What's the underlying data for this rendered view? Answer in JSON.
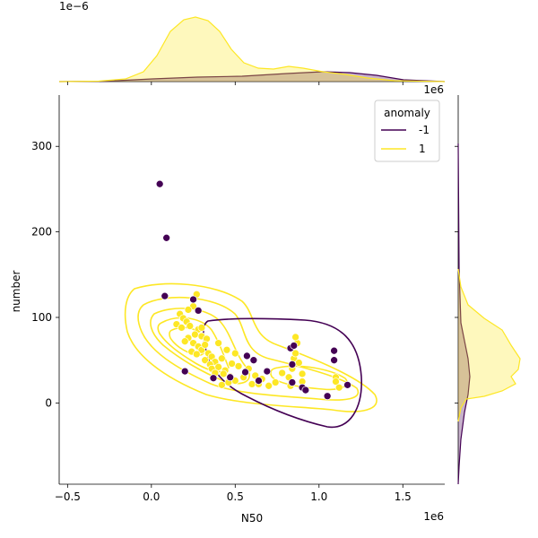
{
  "chart_data": {
    "type": "scatter",
    "title": "",
    "xlabel": "N50",
    "ylabel": "number",
    "x_offset_label": "1e6",
    "y_offset_label_top_margin": "1e−6",
    "x_offset_label_right_margin": "1e6",
    "xlim": [
      -0.55,
      1.75
    ],
    "ylim": [
      -95,
      360
    ],
    "x_ticks": [
      -0.5,
      0.0,
      0.5,
      1.0,
      1.5
    ],
    "x_tick_labels": [
      "−0.5",
      "0.0",
      "0.5",
      "1.0",
      "1.5"
    ],
    "y_ticks": [
      0,
      100,
      200,
      300
    ],
    "y_tick_labels": [
      "0",
      "100",
      "200",
      "300"
    ],
    "legend": {
      "title": "anomaly",
      "position": "top-right",
      "entries": [
        {
          "label": "-1",
          "color": "#440154"
        },
        {
          "label": "1",
          "color": "#fde725"
        }
      ]
    },
    "colors": {
      "anomaly_neg": "#440154",
      "anomaly_pos": "#fde725"
    },
    "series": [
      {
        "name": "-1",
        "points": [
          [
            0.05,
            256
          ],
          [
            0.09,
            193
          ],
          [
            0.08,
            125
          ],
          [
            0.25,
            121
          ],
          [
            0.28,
            108
          ],
          [
            0.2,
            37
          ],
          [
            0.37,
            29
          ],
          [
            0.47,
            30
          ],
          [
            0.56,
            36
          ],
          [
            0.57,
            55
          ],
          [
            0.61,
            50
          ],
          [
            0.64,
            26
          ],
          [
            0.69,
            37
          ],
          [
            0.83,
            64
          ],
          [
            0.85,
            67
          ],
          [
            0.84,
            45
          ],
          [
            0.84,
            24
          ],
          [
            0.9,
            18
          ],
          [
            0.92,
            15
          ],
          [
            1.05,
            8
          ],
          [
            1.09,
            61
          ],
          [
            1.09,
            50
          ],
          [
            1.17,
            21
          ]
        ]
      },
      {
        "name": "1",
        "points": [
          [
            0.27,
            127
          ],
          [
            0.25,
            113
          ],
          [
            0.22,
            109
          ],
          [
            0.17,
            104
          ],
          [
            0.19,
            99
          ],
          [
            0.21,
            95
          ],
          [
            0.23,
            90
          ],
          [
            0.15,
            92
          ],
          [
            0.18,
            88
          ],
          [
            0.28,
            86
          ],
          [
            0.26,
            80
          ],
          [
            0.22,
            76
          ],
          [
            0.3,
            78
          ],
          [
            0.33,
            75
          ],
          [
            0.2,
            72
          ],
          [
            0.25,
            70
          ],
          [
            0.28,
            66
          ],
          [
            0.3,
            62
          ],
          [
            0.24,
            60
          ],
          [
            0.34,
            58
          ],
          [
            0.36,
            54
          ],
          [
            0.27,
            57
          ],
          [
            0.32,
            50
          ],
          [
            0.38,
            48
          ],
          [
            0.42,
            52
          ],
          [
            0.35,
            45
          ],
          [
            0.4,
            42
          ],
          [
            0.44,
            38
          ],
          [
            0.48,
            46
          ],
          [
            0.52,
            43
          ],
          [
            0.36,
            40
          ],
          [
            0.43,
            34
          ],
          [
            0.47,
            31
          ],
          [
            0.5,
            26
          ],
          [
            0.55,
            30
          ],
          [
            0.46,
            24
          ],
          [
            0.42,
            21
          ],
          [
            0.6,
            22
          ],
          [
            0.62,
            32
          ],
          [
            0.66,
            28
          ],
          [
            0.7,
            20
          ],
          [
            0.74,
            24
          ],
          [
            0.78,
            35
          ],
          [
            0.82,
            30
          ],
          [
            0.84,
            40
          ],
          [
            0.85,
            52
          ],
          [
            0.86,
            58
          ],
          [
            0.87,
            70
          ],
          [
            0.86,
            77
          ],
          [
            0.88,
            47
          ],
          [
            0.9,
            34
          ],
          [
            0.9,
            25
          ],
          [
            1.1,
            30
          ],
          [
            1.1,
            25
          ],
          [
            1.12,
            18
          ],
          [
            0.32,
            68
          ],
          [
            0.4,
            70
          ],
          [
            0.45,
            62
          ],
          [
            0.5,
            58
          ],
          [
            0.3,
            88
          ],
          [
            0.38,
            35
          ],
          [
            0.58,
            40
          ],
          [
            0.64,
            22
          ],
          [
            0.83,
            20
          ]
        ]
      }
    ]
  }
}
